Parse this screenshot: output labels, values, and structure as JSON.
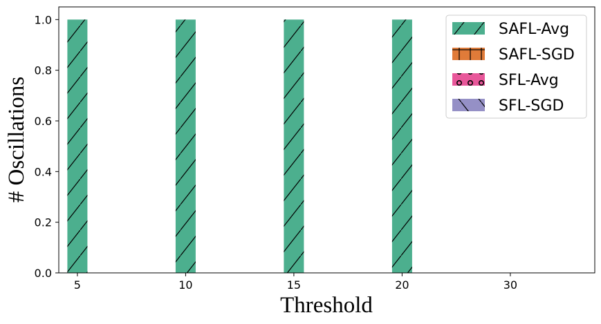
{
  "chart_data": {
    "type": "bar",
    "title": "",
    "xlabel": "Threshold",
    "ylabel": "# Oscillations",
    "categories": [
      "5",
      "10",
      "15",
      "20",
      "30"
    ],
    "ylim": [
      0,
      1.05
    ],
    "yticks": [
      "0.0",
      "0.2",
      "0.4",
      "0.6",
      "0.8",
      "1.0"
    ],
    "grid": false,
    "legend_position": "top-right",
    "series": [
      {
        "name": "SAFL-Avg",
        "values": [
          1,
          1,
          1,
          1,
          0
        ],
        "color": "#4caf8e",
        "hatch": "diagonal-forward"
      },
      {
        "name": "SAFL-SGD",
        "values": [
          0,
          0,
          0,
          0,
          0
        ],
        "color": "#e07b39",
        "hatch": "cross"
      },
      {
        "name": "SFL-Avg",
        "values": [
          0,
          0,
          0,
          0,
          0
        ],
        "color": "#e8579a",
        "hatch": "circles"
      },
      {
        "name": "SFL-SGD",
        "values": [
          0,
          0,
          0,
          0,
          0
        ],
        "color": "#9590c6",
        "hatch": "diagonal-back"
      }
    ]
  }
}
